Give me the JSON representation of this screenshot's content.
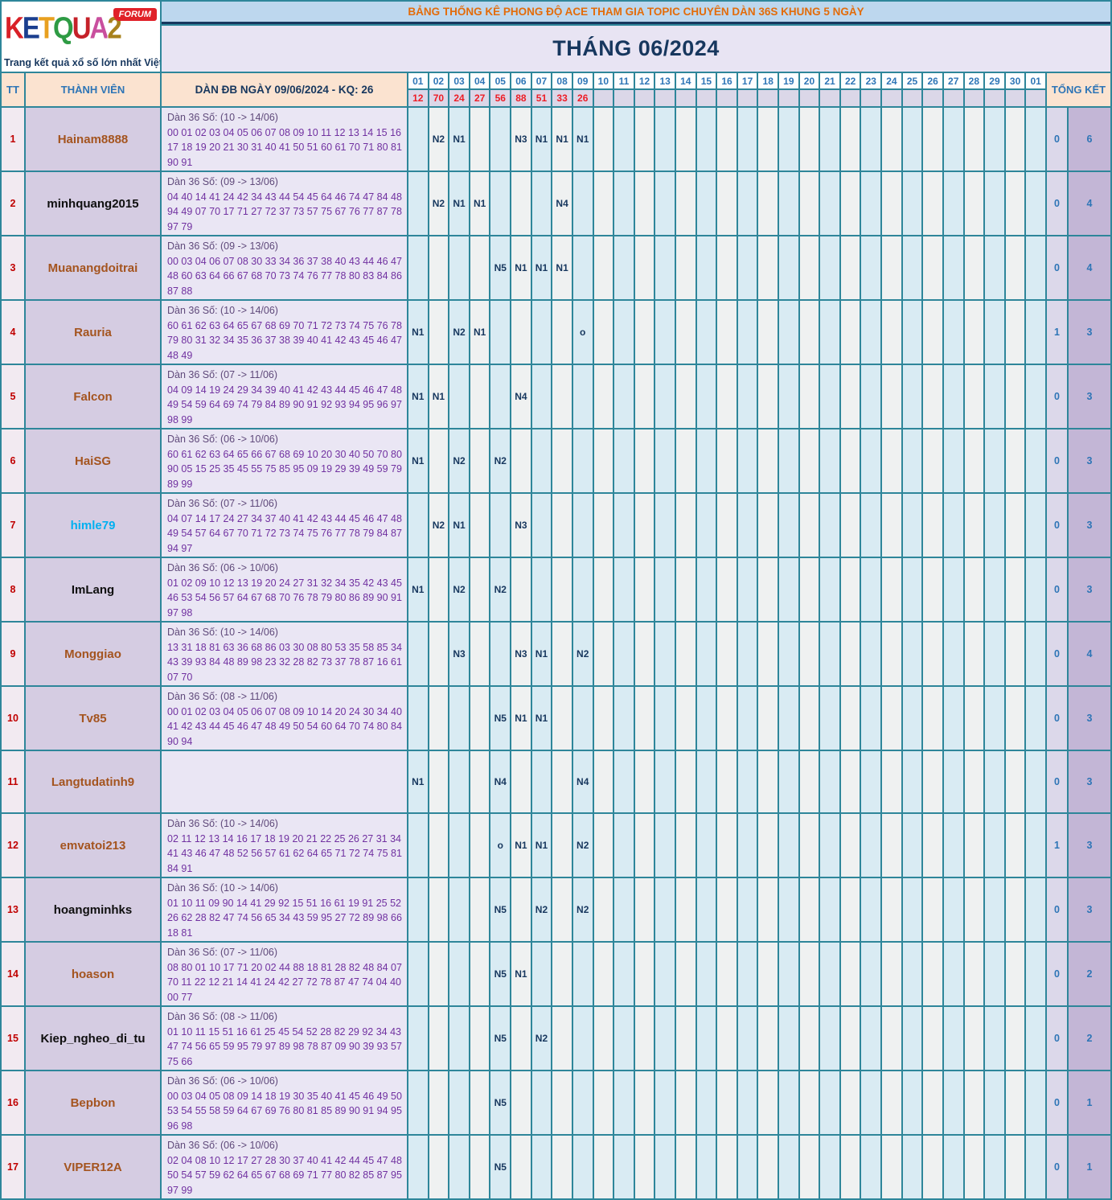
{
  "logo": {
    "letters": [
      {
        "ch": "K",
        "color": "#d92027"
      },
      {
        "ch": "E",
        "color": "#1b3f8f"
      },
      {
        "ch": "T",
        "color": "#e8a020"
      },
      {
        "ch": "Q",
        "color": "#2e9b44"
      },
      {
        "ch": "U",
        "color": "#c52129"
      },
      {
        "ch": "A",
        "color": "#c94f9e"
      },
      {
        "ch": "2",
        "color": "#a8821c"
      }
    ],
    "forum_label": "FORUM",
    "tagline": "Trang kết quả xổ số lớn nhất Việt Nam"
  },
  "banner": {
    "title": "BẢNG THỐNG KÊ PHONG ĐỘ ACE THAM GIA TOPIC CHUYÊN DÀN 36S KHUNG 5 NGÀY"
  },
  "month_title": "THÁNG 06/2024",
  "table": {
    "col_headers": {
      "tt": "TT",
      "member": "THÀNH VIÊN",
      "dan": "DÀN ĐB NGÀY 09/06/2024 - KQ: 26",
      "total": "TỔNG KẾT"
    },
    "day_columns": [
      "01",
      "02",
      "03",
      "04",
      "05",
      "06",
      "07",
      "08",
      "09",
      "10",
      "11",
      "12",
      "13",
      "14",
      "15",
      "16",
      "17",
      "18",
      "19",
      "20",
      "21",
      "22",
      "23",
      "24",
      "25",
      "26",
      "27",
      "28",
      "29",
      "30",
      "01"
    ],
    "day_results": [
      "12",
      "70",
      "24",
      "27",
      "56",
      "88",
      "51",
      "33",
      "26",
      "",
      "",
      "",
      "",
      "",
      "",
      "",
      "",
      "",
      "",
      "",
      "",
      "",
      "",
      "",
      "",
      "",
      "",
      "",
      "",
      "",
      ""
    ],
    "rows": [
      {
        "tt": "1",
        "member": "Hainam8888",
        "name_color": "#a4541f",
        "dan_header": "Dàn 36 Số: (10 -> 14/06)",
        "dan_numbers": "00 01 02 03 04 05 06 07 08 09 10 11 12 13 14 15 16 17 18 19 20 21 30 31 40 41 50 51 60 61 70 71 80 81 90 91",
        "cells": {
          "2": "N2",
          "3": "N1",
          "6": "N3",
          "7": "N1",
          "8": "N1",
          "9": "N1"
        },
        "tk1": "0",
        "tk2": "6"
      },
      {
        "tt": "2",
        "member": "minhquang2015",
        "name_color": "#0f0f0f",
        "dan_header": "Dàn 36 Số: (09 -> 13/06)",
        "dan_numbers": "04 40 14 41 24 42 34 43 44 54 45 64 46 74 47 84 48 94 49 07 70 17 71 27 72 37 73 57 75 67 76 77 87 78 97 79",
        "cells": {
          "2": "N2",
          "3": "N1",
          "4": "N1",
          "8": "N4"
        },
        "tk1": "0",
        "tk2": "4"
      },
      {
        "tt": "3",
        "member": "Muanangdoitrai",
        "name_color": "#a4541f",
        "dan_header": "Dàn 36 Số: (09 -> 13/06)",
        "dan_numbers": "00 03 04 06 07 08 30 33 34 36 37 38 40 43 44 46 47 48 60 63 64 66 67 68 70 73 74 76 77 78 80 83 84 86 87 88",
        "cells": {
          "5": "N5",
          "6": "N1",
          "7": "N1",
          "8": "N1"
        },
        "tk1": "0",
        "tk2": "4"
      },
      {
        "tt": "4",
        "member": "Rauria",
        "name_color": "#a4541f",
        "dan_header": "Dàn 36 Số: (10 -> 14/06)",
        "dan_numbers": "60 61 62 63 64 65 67 68 69 70 71 72 73 74 75 76 78 79 80 31 32 34 35 36 37 38 39 40 41 42 43 45 46 47 48 49",
        "cells": {
          "1": "N1",
          "3": "N2",
          "4": "N1",
          "9": "o"
        },
        "tk1": "1",
        "tk2": "3"
      },
      {
        "tt": "5",
        "member": "Falcon",
        "name_color": "#a4541f",
        "dan_header": "Dàn 36 Số: (07 -> 11/06)",
        "dan_numbers": "04 09 14 19 24 29 34 39 40 41 42 43 44 45 46 47 48 49 54 59 64 69 74 79 84 89 90 91 92 93 94 95 96 97 98 99",
        "cells": {
          "1": "N1",
          "2": "N1",
          "6": "N4"
        },
        "tk1": "0",
        "tk2": "3"
      },
      {
        "tt": "6",
        "member": "HaiSG",
        "name_color": "#a4541f",
        "dan_header": "Dàn 36 Số: (06 -> 10/06)",
        "dan_numbers": "60 61 62 63 64 65 66 67 68 69 10 20 30 40 50 70 80 90 05 15 25 35 45 55 75 85 95 09 19 29 39 49 59 79 89 99",
        "cells": {
          "1": "N1",
          "3": "N2",
          "5": "N2"
        },
        "tk1": "0",
        "tk2": "3"
      },
      {
        "tt": "7",
        "member": "himle79",
        "name_color": "#00b0f0",
        "dan_header": "Dàn 36 Số: (07 -> 11/06)",
        "dan_numbers": "04 07 14 17 24 27 34 37 40 41 42 43 44 45 46 47 48 49 54 57 64 67 70 71 72 73 74 75 76 77 78 79 84 87 94 97",
        "cells": {
          "2": "N2",
          "3": "N1",
          "6": "N3"
        },
        "tk1": "0",
        "tk2": "3"
      },
      {
        "tt": "8",
        "member": "ImLang",
        "name_color": "#0f0f0f",
        "dan_header": "Dàn 36 Số: (06 -> 10/06)",
        "dan_numbers": "01 02 09 10 12 13 19 20 24 27 31 32 34 35 42 43 45 46 53 54 56 57 64 67 68 70 76 78 79 80 86 89 90 91 97 98",
        "cells": {
          "1": "N1",
          "3": "N2",
          "5": "N2"
        },
        "tk1": "0",
        "tk2": "3"
      },
      {
        "tt": "9",
        "member": "Monggiao",
        "name_color": "#a4541f",
        "dan_header": "Dàn 36 Số: (10 -> 14/06)",
        "dan_numbers": "13 31 18 81 63 36 68 86 03 30 08 80 53 35 58 85 34 43 39 93 84 48 89 98 23 32 28 82 73 37 78 87 16 61 07 70",
        "cells": {
          "3": "N3",
          "6": "N3",
          "7": "N1",
          "9": "N2"
        },
        "tk1": "0",
        "tk2": "4"
      },
      {
        "tt": "10",
        "member": "Tv85",
        "name_color": "#a4541f",
        "dan_header": "Dàn 36 Số: (08 -> 11/06)",
        "dan_numbers": "00 01 02 03 04 05 06 07 08 09 10 14 20 24 30 34 40 41 42 43 44 45 46 47 48 49 50 54 60 64 70 74 80 84 90 94",
        "cells": {
          "5": "N5",
          "6": "N1",
          "7": "N1"
        },
        "tk1": "0",
        "tk2": "3"
      },
      {
        "tt": "11",
        "member": "Langtudatinh9",
        "name_color": "#a4541f",
        "dan_header": "",
        "dan_numbers": "",
        "cells": {
          "1": "N1",
          "5": "N4",
          "9": "N4"
        },
        "tk1": "0",
        "tk2": "3"
      },
      {
        "tt": "12",
        "member": "emvatoi213",
        "name_color": "#a4541f",
        "dan_header": "Dàn 36 Số: (10 -> 14/06)",
        "dan_numbers": "02 11 12 13 14 16 17 18 19 20 21 22 25 26 27 31 34 41 43 46 47 48 52 56 57 61 62 64 65 71 72 74 75 81 84 91",
        "cells": {
          "5": "o",
          "6": "N1",
          "7": "N1",
          "9": "N2"
        },
        "tk1": "1",
        "tk2": "3"
      },
      {
        "tt": "13",
        "member": "hoangminhks",
        "name_color": "#0f0f0f",
        "dan_header": "Dàn 36 Số: (10 -> 14/06)",
        "dan_numbers": "01 10 11 09 90 14 41 29 92 15 51 16 61 19 91 25 52 26 62 28 82 47 74 56 65 34 43 59 95 27 72 89 98 66 18 81",
        "cells": {
          "5": "N5",
          "7": "N2",
          "9": "N2"
        },
        "tk1": "0",
        "tk2": "3"
      },
      {
        "tt": "14",
        "member": "hoason",
        "name_color": "#a4541f",
        "dan_header": "Dàn 36 Số: (07 -> 11/06)",
        "dan_numbers": "08 80 01 10 17 71 20 02 44 88 18 81 28 82 48 84 07 70 11 22 12 21 14 41 24 42 27 72 78 87 47 74 04 40 00 77",
        "cells": {
          "5": "N5",
          "6": "N1"
        },
        "tk1": "0",
        "tk2": "2"
      },
      {
        "tt": "15",
        "member": "Kiep_ngheo_di_tu",
        "name_color": "#0f0f0f",
        "dan_header": "Dàn 36 Số: (08 -> 11/06)",
        "dan_numbers": "01 10 11 15 51 16 61 25 45 54 52 28 82 29 92 34 43 47 74 56 65 59 95 79 97 89 98 78 87 09 90 39 93 57 75 66",
        "cells": {
          "5": "N5",
          "7": "N2"
        },
        "tk1": "0",
        "tk2": "2"
      },
      {
        "tt": "16",
        "member": "Bepbon",
        "name_color": "#a4541f",
        "dan_header": "Dàn 36 Số: (06 -> 10/06)",
        "dan_numbers": "00 03 04 05 08 09 14 18 19 30 35 40 41 45 46 49 50 53 54 55 58 59 64 67 69 76 80 81 85 89 90 91 94 95 96 98",
        "cells": {
          "5": "N5"
        },
        "tk1": "0",
        "tk2": "1"
      },
      {
        "tt": "17",
        "member": "VIPER12A",
        "name_color": "#a4541f",
        "dan_header": "Dàn 36 Số: (06 -> 10/06)",
        "dan_numbers": "02 04 08 10 12 17 27 28 30 37 40 41 42 44 45 47 48 50 54 57 59 62 64 65 67 68 69 71 77 80 82 85 87 95 97 99",
        "cells": {
          "5": "N5"
        },
        "tk1": "0",
        "tk2": "1"
      }
    ]
  }
}
